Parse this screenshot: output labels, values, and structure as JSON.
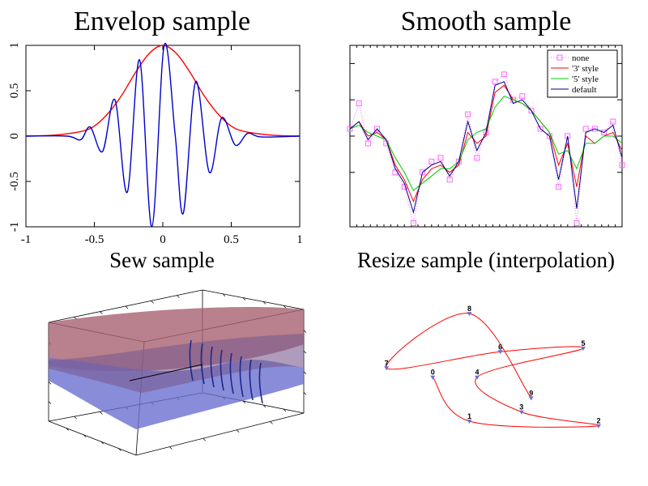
{
  "titles": {
    "envelop": "Envelop sample",
    "smooth": "Smooth sample",
    "sew": "Sew sample",
    "resize": "Resize sample (interpolation)"
  },
  "colors": {
    "red": "#ff0000",
    "blue": "#0000cc",
    "green": "#00cc00",
    "navy": "#000088",
    "magenta": "#ff66ff",
    "surface_red": "#a86070",
    "surface_blue": "#6a6fd0"
  },
  "chart_data": [
    {
      "id": "envelop",
      "type": "line",
      "title": "Envelop sample",
      "xlim": [
        -1,
        1
      ],
      "ylim": [
        -1,
        1
      ],
      "x_ticks": [
        -1,
        -0.5,
        0,
        0.5,
        1
      ],
      "x_tick_labels": [
        "-1",
        "-0.5",
        "0",
        "0.5",
        "1"
      ],
      "y_ticks": [
        -1,
        -0.5,
        0,
        0.5,
        1
      ],
      "y_tick_labels": [
        "-1",
        "-0.5",
        "0",
        "0.5",
        "1"
      ],
      "series": [
        {
          "kind": "envelope",
          "color": "red",
          "points": [
            [
              -1,
              0
            ],
            [
              -0.8,
              0.01
            ],
            [
              -0.6,
              0.05
            ],
            [
              -0.5,
              0.11
            ],
            [
              -0.4,
              0.25
            ],
            [
              -0.3,
              0.45
            ],
            [
              -0.2,
              0.7
            ],
            [
              -0.1,
              0.91
            ],
            [
              0,
              1
            ],
            [
              0.1,
              0.91
            ],
            [
              0.2,
              0.7
            ],
            [
              0.3,
              0.45
            ],
            [
              0.4,
              0.25
            ],
            [
              0.5,
              0.11
            ],
            [
              0.6,
              0.05
            ],
            [
              0.8,
              0.01
            ],
            [
              1,
              0
            ]
          ]
        },
        {
          "kind": "carrier",
          "color": "blue",
          "points": [
            [
              -1,
              0
            ],
            [
              -0.7,
              0
            ],
            [
              -0.6,
              -0.04
            ],
            [
              -0.53,
              0.1
            ],
            [
              -0.44,
              -0.17
            ],
            [
              -0.35,
              0.4
            ],
            [
              -0.26,
              -0.62
            ],
            [
              -0.17,
              0.84
            ],
            [
              -0.08,
              -1
            ],
            [
              0.01,
              1
            ],
            [
              0.09,
              0.02
            ],
            [
              0.15,
              -0.85
            ],
            [
              0.24,
              0.6
            ],
            [
              0.34,
              -0.4
            ],
            [
              0.43,
              0.2
            ],
            [
              0.53,
              -0.1
            ],
            [
              0.62,
              0.03
            ],
            [
              0.72,
              -0.01
            ],
            [
              1,
              0
            ]
          ]
        }
      ]
    },
    {
      "id": "smooth",
      "type": "line",
      "title": "Smooth sample",
      "xlim": [
        0,
        1
      ],
      "ylim": [
        -1.25,
        1.25
      ],
      "y_ticks": [
        -0.5,
        0,
        0.5,
        1
      ],
      "legend": [
        "none",
        "'3' style",
        "'5' style",
        "default"
      ],
      "legend_position": "top-right",
      "series": [
        {
          "name": "none",
          "color": "magenta",
          "style": "dotted-squares",
          "y": [
            0.1,
            0.45,
            -0.1,
            0.1,
            -0.1,
            -0.5,
            -0.7,
            -1.2,
            -0.5,
            -0.35,
            -0.3,
            -0.6,
            -0.35,
            0.3,
            -0.3,
            0.05,
            0.75,
            0.85,
            0.5,
            0.55,
            0.35,
            0.1,
            0.0,
            -0.7,
            0.0,
            -1.2,
            0.1,
            0.1,
            0.05,
            0.2,
            -0.4
          ]
        },
        {
          "name": "'3' style",
          "color": "red",
          "style": "solid",
          "y": [
            0.1,
            0.2,
            0.0,
            0.05,
            -0.05,
            -0.4,
            -0.6,
            -0.9,
            -0.6,
            -0.45,
            -0.4,
            -0.5,
            -0.4,
            0.05,
            -0.1,
            0.0,
            0.6,
            0.7,
            0.5,
            0.45,
            0.35,
            0.2,
            0.05,
            -0.4,
            -0.1,
            -0.7,
            0.0,
            -0.1,
            0.0,
            0.05,
            -0.2
          ]
        },
        {
          "name": "'5' style",
          "color": "green",
          "style": "solid",
          "y": [
            0.1,
            0.15,
            0.05,
            0.0,
            -0.05,
            -0.3,
            -0.5,
            -0.75,
            -0.65,
            -0.55,
            -0.45,
            -0.45,
            -0.35,
            -0.05,
            0.05,
            0.1,
            0.4,
            0.55,
            0.5,
            0.45,
            0.35,
            0.2,
            0.05,
            -0.25,
            -0.2,
            -0.45,
            -0.1,
            -0.1,
            0.0,
            0.0,
            -0.1
          ]
        },
        {
          "name": "default",
          "color": "navy",
          "style": "solid",
          "y": [
            0.1,
            0.2,
            -0.05,
            0.1,
            -0.05,
            -0.45,
            -0.65,
            -1.05,
            -0.5,
            -0.4,
            -0.35,
            -0.55,
            -0.35,
            0.2,
            -0.2,
            0.05,
            0.7,
            0.75,
            0.45,
            0.5,
            0.35,
            0.1,
            0.0,
            -0.6,
            0.0,
            -1.0,
            0.05,
            0.1,
            0.05,
            0.15,
            -0.3
          ]
        }
      ]
    },
    {
      "id": "sew",
      "type": "surface",
      "title": "Sew sample",
      "surfaces": [
        "surface_red",
        "surface_blue"
      ]
    },
    {
      "id": "resize",
      "type": "line",
      "title": "Resize sample (interpolation)",
      "point_labels": [
        "0",
        "1",
        "2",
        "3",
        "4",
        "5",
        "6",
        "7",
        "8",
        "9"
      ],
      "points": [
        [
          0.12,
          0.4
        ],
        [
          0.31,
          0.78
        ],
        [
          0.98,
          0.82
        ],
        [
          0.58,
          0.7
        ],
        [
          0.35,
          0.4
        ],
        [
          0.9,
          0.15
        ],
        [
          0.47,
          0.18
        ],
        [
          -0.12,
          0.32
        ],
        [
          0.31,
          -0.15
        ],
        [
          0.63,
          0.58
        ]
      ]
    }
  ]
}
